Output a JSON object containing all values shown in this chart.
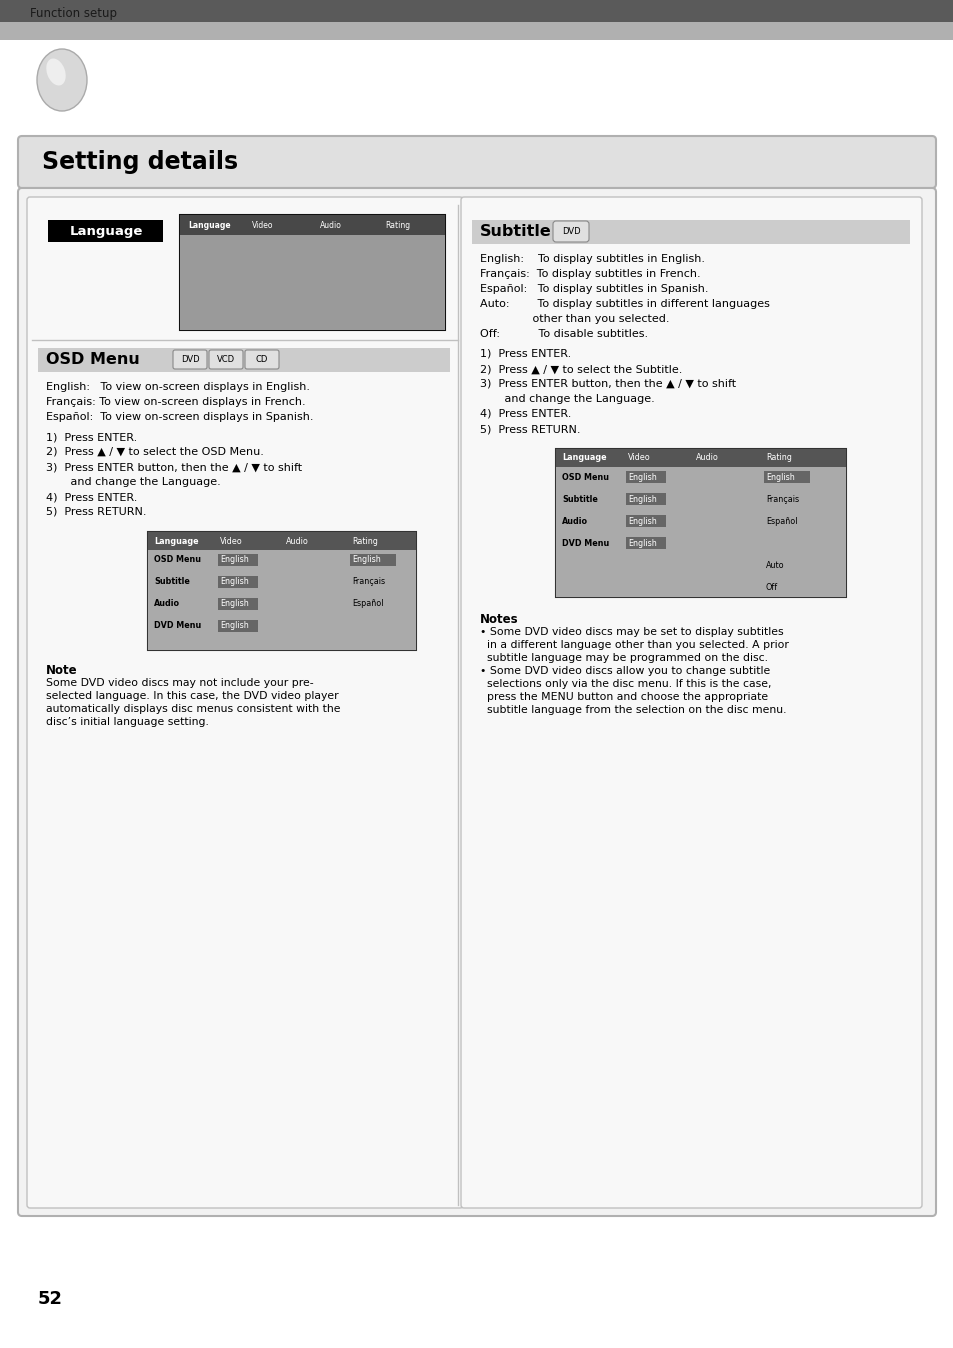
{
  "page_bg": "#ffffff",
  "header_text": "Function setup",
  "page_number": "52",
  "section_title": "Setting details",
  "language_label": "Language",
  "osd_title": "OSD Menu",
  "osd_badges": [
    "DVD",
    "VCD",
    "CD"
  ],
  "osd_desc_lines": [
    "English:   To view on-screen displays in English.",
    "Français: To view on-screen displays in French.",
    "Español:  To view on-screen displays in Spanish."
  ],
  "osd_steps_lines": [
    "1)  Press ENTER.",
    "2)  Press ▲ / ▼ to select the OSD Menu.",
    "3)  Press ENTER button, then the ▲ / ▼ to shift",
    "       and change the Language.",
    "4)  Press ENTER.",
    "5)  Press RETURN."
  ],
  "osd_note_title": "Note",
  "osd_note_lines": [
    "Some DVD video discs may not include your pre-",
    "selected language. In this case, the DVD video player",
    "automatically displays disc menus consistent with the",
    "disc’s initial language setting."
  ],
  "subtitle_title": "Subtitle",
  "subtitle_badge": "DVD",
  "subtitle_desc_lines": [
    "English:    To display subtitles in English.",
    "Français:  To display subtitles in French.",
    "Español:   To display subtitles in Spanish.",
    "Auto:        To display subtitles in different languages",
    "               other than you selected.",
    "Off:           To disable subtitles."
  ],
  "subtitle_steps_lines": [
    "1)  Press ENTER.",
    "2)  Press ▲ / ▼ to select the Subtitle.",
    "3)  Press ENTER button, then the ▲ / ▼ to shift",
    "       and change the Language.",
    "4)  Press ENTER.",
    "5)  Press RETURN."
  ],
  "subtitle_notes_title": "Notes",
  "subtitle_notes_lines": [
    "• Some DVD video discs may be set to display subtitles",
    "  in a different language other than you selected. A prior",
    "  subtitle language may be programmed on the disc.",
    "• Some DVD video discs allow you to change subtitle",
    "  selections only via the disc menu. If this is the case,",
    "  press the MENU button and choose the appropriate",
    "  subtitle language from the selection on the disc menu."
  ],
  "tbl_headers": [
    "Language",
    "Video",
    "Audio",
    "Rating"
  ],
  "tbl_left_rows": [
    [
      "OSD Menu",
      "English",
      "English"
    ],
    [
      "Subtitle",
      "English",
      "Français"
    ],
    [
      "Audio",
      "English",
      "Español"
    ],
    [
      "DVD Menu",
      "English",
      ""
    ]
  ],
  "tbl_right_rows": [
    [
      "OSD Menu",
      "English",
      "English"
    ],
    [
      "Subtitle",
      "English",
      "Français"
    ],
    [
      "Audio",
      "English",
      "Español"
    ],
    [
      "DVD Menu",
      "English",
      ""
    ],
    [
      "",
      "",
      "Auto"
    ],
    [
      "",
      "",
      "Off"
    ]
  ]
}
